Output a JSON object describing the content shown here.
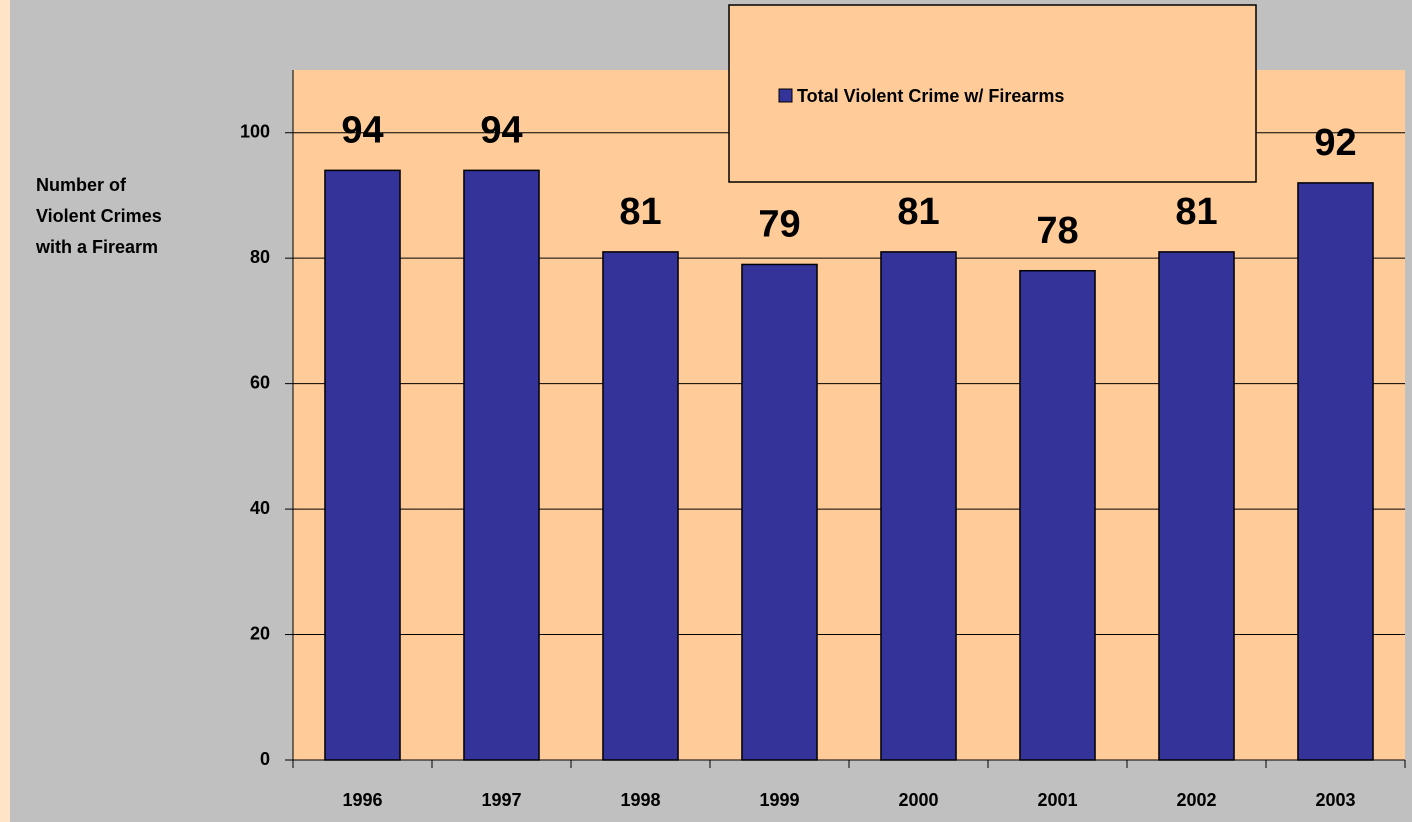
{
  "chart_data": {
    "type": "bar",
    "ylabel": [
      "Number of",
      "Violent Crimes",
      "with a Firearm"
    ],
    "categories": [
      "1996",
      "1997",
      "1998",
      "1999",
      "2000",
      "2001",
      "2002",
      "2003"
    ],
    "series": [
      {
        "name": "Total Violent Crime w/ Firearms",
        "color": "#333399",
        "values": [
          94,
          94,
          81,
          79,
          81,
          78,
          81,
          92
        ]
      }
    ],
    "ylim": [
      0,
      110
    ],
    "yticks": [
      0,
      20,
      40,
      60,
      80,
      100
    ],
    "grid": true,
    "legend": "top-right"
  }
}
